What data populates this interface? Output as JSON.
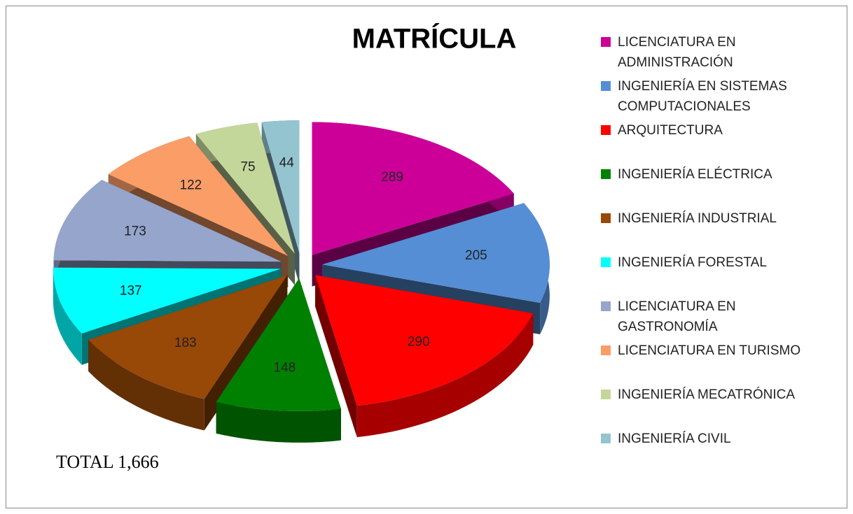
{
  "chart_data": {
    "type": "pie",
    "title": "MATRÍCULA",
    "categories": [
      "LICENCIATURA EN ADMINISTRACIÓN",
      "INGENIERÍA EN SISTEMAS COMPUTACIONALES",
      "ARQUITECTURA",
      "INGENIERÍA ELÉCTRICA",
      "INGENIERÍA INDUSTRIAL",
      "INGENIERÍA FORESTAL",
      "LICENCIATURA EN GASTRONOMÍA",
      "LICENCIATURA EN TURISMO",
      "INGENIERÍA MECATRÓNICA",
      "INGENIERÍA CIVIL"
    ],
    "values": [
      289,
      205,
      290,
      148,
      183,
      137,
      173,
      122,
      75,
      44
    ],
    "colors": [
      "#cc0099",
      "#558ed5",
      "#ff0000",
      "#008000",
      "#984807",
      "#00ffff",
      "#95a5cc",
      "#fa9d67",
      "#c4d79b",
      "#93c4d0"
    ],
    "annotation": "TOTAL 1,666",
    "legend": "right"
  }
}
